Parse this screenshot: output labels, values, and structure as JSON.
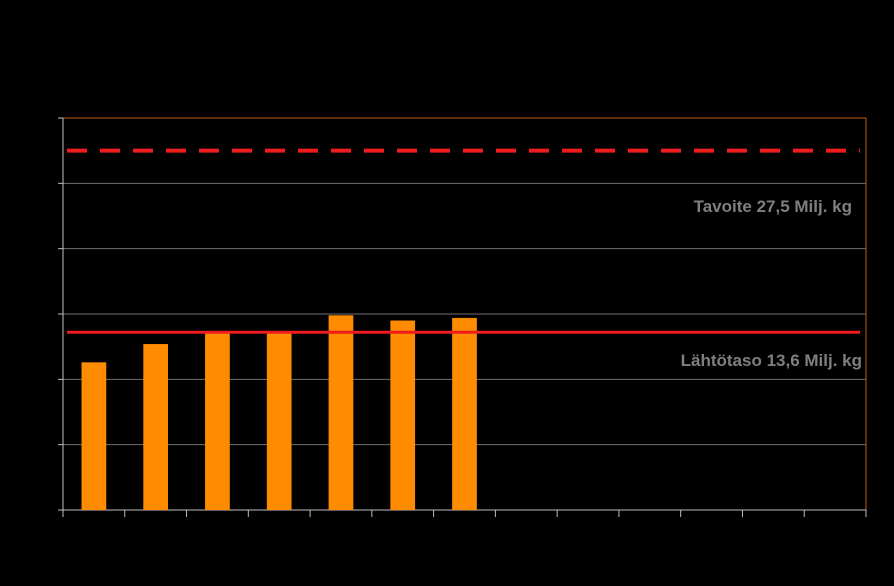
{
  "chart_data": {
    "type": "bar",
    "title": "",
    "xlabel": "",
    "ylabel": "",
    "category_count": 13,
    "values": [
      11.3,
      12.7,
      13.7,
      13.7,
      14.9,
      14.5,
      14.7
    ],
    "ylim": [
      0,
      30
    ],
    "y_step": 5,
    "grid": true,
    "legend": "none",
    "reference_lines": [
      {
        "value": 27.5,
        "label": "Tavoite 27,5 Milj. kg",
        "style": "dashed",
        "color": "#ee1c1c"
      },
      {
        "value": 13.6,
        "label": "Lähtötaso 13,6 Milj. kg",
        "style": "solid",
        "color": "#ee1c1c"
      }
    ],
    "colors": {
      "bar": "#ff8c00",
      "grid": "#6e6e6e",
      "axis": "#bfbfbf",
      "frame": "#c05a1a",
      "label": "#7f7f7f"
    }
  }
}
